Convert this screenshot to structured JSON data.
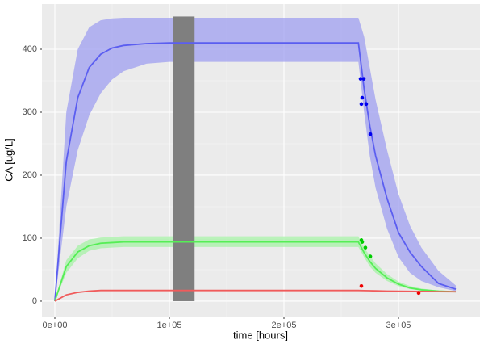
{
  "chart_data": {
    "type": "line",
    "x_label": "time [hours]",
    "y_label": "CA [ug/L]",
    "xlim": [
      -11268,
      371127
    ],
    "ylim": [
      -24.4,
      471.8
    ],
    "xticks": [
      {
        "value": 0,
        "label": "0e+00"
      },
      {
        "value": 100000,
        "label": "1e+05"
      },
      {
        "value": 200000,
        "label": "2e+05"
      },
      {
        "value": 300000,
        "label": "3e+05"
      }
    ],
    "yticks": [
      0,
      100,
      200,
      300,
      400
    ],
    "grid": true,
    "x": [
      0,
      10000,
      20000,
      30000,
      40000,
      50000,
      60000,
      80000,
      100000,
      150000,
      200000,
      265000,
      270000,
      275000,
      280000,
      290000,
      300000,
      310000,
      320000,
      335000,
      350000
    ],
    "series": [
      {
        "color": "#5b5ef0",
        "band_color": "#9f9ff0",
        "values": [
          0,
          222,
          323,
          371,
          392,
          402,
          406,
          409,
          410,
          410,
          410,
          410,
          337,
          278,
          231,
          163,
          109,
          78,
          55,
          28,
          19
        ],
        "upper": [
          0,
          300,
          400,
          435,
          446,
          449,
          450,
          450,
          450,
          450,
          450,
          450,
          420,
          370,
          320,
          240,
          170,
          120,
          85,
          48,
          25
        ],
        "lower": [
          0,
          150,
          240,
          295,
          330,
          352,
          365,
          377,
          380,
          380,
          380,
          380,
          300,
          230,
          180,
          115,
          70,
          45,
          32,
          22,
          16
        ]
      },
      {
        "color": "#55ee55",
        "band_color": "#a6f2a6",
        "values": [
          0,
          55,
          78,
          88,
          92,
          93,
          94,
          94,
          94,
          94,
          94,
          94,
          77,
          63,
          52,
          37,
          27,
          21,
          18,
          16,
          15
        ],
        "upper": [
          0,
          65,
          88,
          98,
          101,
          102,
          103,
          103,
          103,
          103,
          103,
          103,
          85,
          72,
          60,
          43,
          31,
          24,
          20,
          17,
          16
        ],
        "lower": [
          0,
          45,
          68,
          80,
          84,
          85,
          86,
          86,
          86,
          86,
          86,
          86,
          70,
          55,
          45,
          32,
          24,
          19,
          17,
          15,
          14
        ]
      },
      {
        "color": "#f05b5b",
        "values": [
          0,
          10,
          14,
          16,
          17,
          17,
          17,
          17,
          17,
          17,
          17,
          17,
          16.8,
          16.6,
          16.4,
          16,
          15.8,
          15.6,
          15.4,
          15.2,
          15
        ]
      }
    ],
    "points": [
      {
        "color": "#0000ee",
        "x": [
          266900,
          269700,
          268300,
          267600,
          271800,
          275400
        ],
        "y": [
          353,
          353,
          323,
          313,
          313,
          265
        ]
      },
      {
        "color": "#00cc00",
        "x": [
          267600,
          268300,
          271100,
          275400
        ],
        "y": [
          97,
          94,
          85,
          71
        ]
      },
      {
        "color": "#ee0000",
        "x": [
          267600,
          317600
        ],
        "y": [
          24,
          13
        ]
      }
    ],
    "shade": {
      "color": "#7f7f7f",
      "xmin": 103000,
      "xmax": 122000,
      "ymin": 0,
      "ymax": 452
    }
  }
}
